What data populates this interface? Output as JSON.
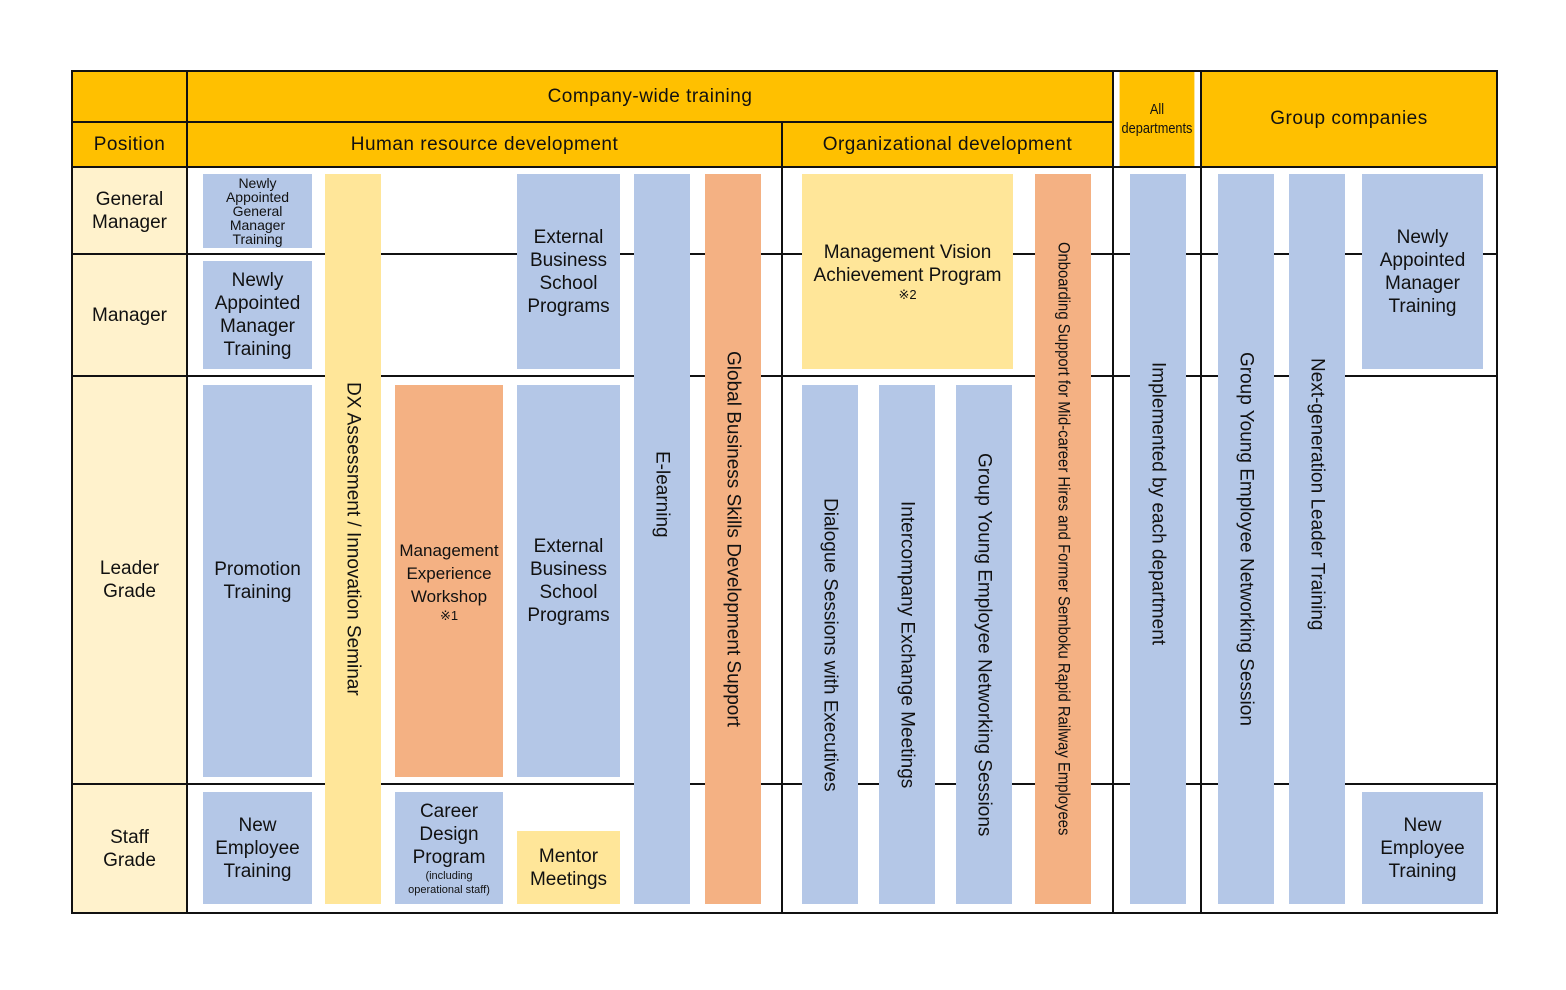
{
  "colors": {
    "header": "#FFC000",
    "position_column": "#FFF2CC",
    "blue": "#B4C7E7",
    "orange": "#F4B183",
    "yellow": "#FFE699"
  },
  "headers": {
    "company_wide": "Company-wide training",
    "position": "Position",
    "hrd": "Human resource development",
    "org": "Organizational development",
    "all_departments_1": "All",
    "all_departments_2": "departments",
    "group": "Group companies"
  },
  "positions": {
    "general_manager": [
      "General",
      "Manager"
    ],
    "manager": "Manager",
    "leader": [
      "Leader",
      "Grade"
    ],
    "staff": [
      "Staff",
      "Grade"
    ]
  },
  "programs": {
    "nagm": [
      "Newly",
      "Appointed",
      "General",
      "Manager",
      "Training"
    ],
    "nam": [
      "Newly",
      "Appointed",
      "Manager",
      "Training"
    ],
    "promotion": [
      "Promotion",
      "Training"
    ],
    "new_employee": [
      "New",
      "Employee",
      "Training"
    ],
    "dx": "DX Assessment / Innovation Seminar",
    "mgmt_exp": [
      "Management",
      "Experience",
      "Workshop",
      "※1"
    ],
    "career": [
      "Career",
      "Design",
      "Program",
      "(including",
      "operational staff)"
    ],
    "ext_bs": [
      "External",
      "Business",
      "School",
      "Programs"
    ],
    "mentor": [
      "Mentor",
      "Meetings"
    ],
    "elearning": "E-learning",
    "global": "Global Business Skills Development Support",
    "mgmt_vision": [
      "Management Vision",
      "Achievement Program",
      "※2"
    ],
    "dialogue": "Dialogue Sessions with Executives",
    "intercompany": "Intercompany Exchange Meetings",
    "group_young_sessions": "Group Young Employee Networking Sessions",
    "onboarding": "Onboarding Support for Mid-career Hires and Former Semboku Rapid Railway Employees",
    "implemented": "Implemented by each department",
    "group_young_session": "Group Young Employee Networking Session",
    "nextgen": "Next-generation Leader Training",
    "group_nam": [
      "Newly",
      "Appointed",
      "Manager",
      "Training"
    ],
    "group_new_employee": [
      "New",
      "Employee",
      "Training"
    ]
  }
}
